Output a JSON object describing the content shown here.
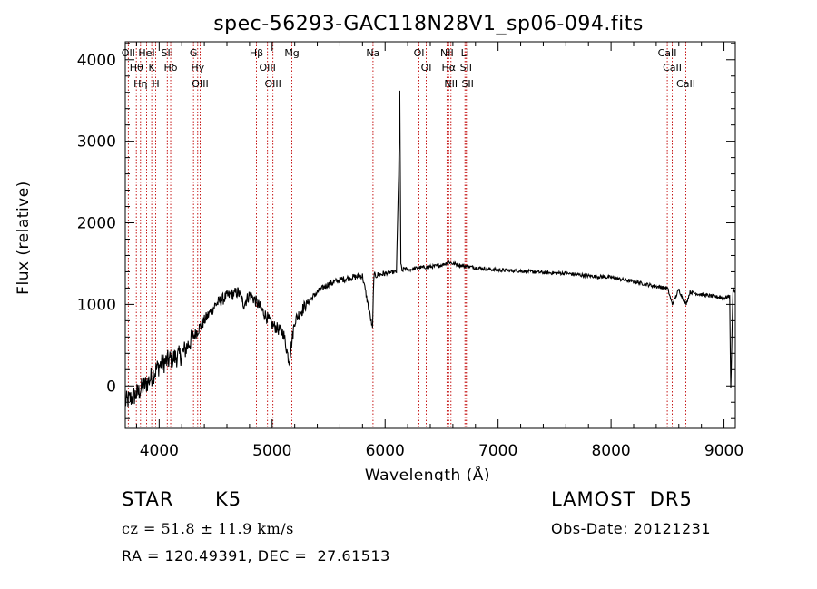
{
  "chart_data": {
    "type": "line",
    "title": "spec-56293-GAC118N28V1_sp06-094.fits",
    "xlabel": "Wavelength (Å)",
    "ylabel": "Flux (relative)",
    "xlim": [
      3700,
      9100
    ],
    "ylim": [
      -520,
      4220
    ],
    "xticks": [
      4000,
      5000,
      6000,
      7000,
      8000,
      9000
    ],
    "yticks": [
      0,
      1000,
      2000,
      3000,
      4000
    ],
    "grid": false,
    "line_color": "#000000",
    "marker_color": "#c00000",
    "series": [
      {
        "x": [
          3700,
          3800,
          3900,
          4000,
          4100,
          4200,
          4300,
          4400,
          4500,
          4600,
          4700,
          4750,
          4800,
          4850,
          4900,
          5000,
          5100,
          5150,
          5200,
          5300,
          5400,
          5500,
          5600,
          5700,
          5800,
          5889,
          5900,
          6000,
          6100,
          6120,
          6130,
          6140,
          6150,
          6170,
          6200,
          6300,
          6400,
          6500,
          6563,
          6600,
          6700,
          6800,
          7000,
          7200,
          7400,
          7600,
          7800,
          8000,
          8200,
          8400,
          8500,
          8542,
          8600,
          8662,
          8700,
          8800,
          8900,
          9000,
          9050,
          9060,
          9080,
          9100
        ],
        "y": [
          -200,
          -100,
          50,
          250,
          330,
          380,
          600,
          800,
          1000,
          1100,
          1150,
          1000,
          1120,
          1050,
          950,
          750,
          650,
          300,
          800,
          1000,
          1150,
          1250,
          1300,
          1330,
          1350,
          700,
          1350,
          1380,
          1400,
          2600,
          3600,
          1500,
          1400,
          1450,
          1420,
          1450,
          1460,
          1480,
          1520,
          1500,
          1470,
          1450,
          1420,
          1410,
          1390,
          1380,
          1350,
          1330,
          1280,
          1220,
          1200,
          1000,
          1180,
          1000,
          1150,
          1120,
          1100,
          1080,
          1100,
          -50,
          1200,
          1150
        ]
      }
    ],
    "lines": [
      {
        "x": 3727,
        "label": "OII"
      },
      {
        "x": 3798,
        "label": "Hθ"
      },
      {
        "x": 3835,
        "label": "Hη"
      },
      {
        "x": 3889,
        "label": "HeI"
      },
      {
        "x": 3934,
        "label": "K"
      },
      {
        "x": 3969,
        "label": "H"
      },
      {
        "x": 4072,
        "label": "SII"
      },
      {
        "x": 4102,
        "label": "Hδ"
      },
      {
        "x": 4304,
        "label": "G"
      },
      {
        "x": 4341,
        "label": "Hγ"
      },
      {
        "x": 4363,
        "label": "OIII"
      },
      {
        "x": 4861,
        "label": "Hβ"
      },
      {
        "x": 4959,
        "label": "OIII"
      },
      {
        "x": 5007,
        "label": "OIII"
      },
      {
        "x": 5175,
        "label": "Mg"
      },
      {
        "x": 5893,
        "label": "Na"
      },
      {
        "x": 6300,
        "label": "OI"
      },
      {
        "x": 6364,
        "label": "OI"
      },
      {
        "x": 6548,
        "label": "NII"
      },
      {
        "x": 6563,
        "label": "Hα"
      },
      {
        "x": 6583,
        "label": "NII"
      },
      {
        "x": 6707,
        "label": "Li"
      },
      {
        "x": 6716,
        "label": "SII"
      },
      {
        "x": 6731,
        "label": "SII"
      },
      {
        "x": 8498,
        "label": "CaII"
      },
      {
        "x": 8542,
        "label": "CaII"
      },
      {
        "x": 8662,
        "label": "CaII"
      }
    ]
  },
  "info": {
    "object_class": "STAR",
    "subclass": "K5",
    "redshift": "cz = 51.8 ± 11.9 km/s",
    "coords": "RA = 120.49391, DEC =  27.61513",
    "survey": "LAMOST  DR5",
    "obs_date": "Obs-Date: 20121231"
  }
}
